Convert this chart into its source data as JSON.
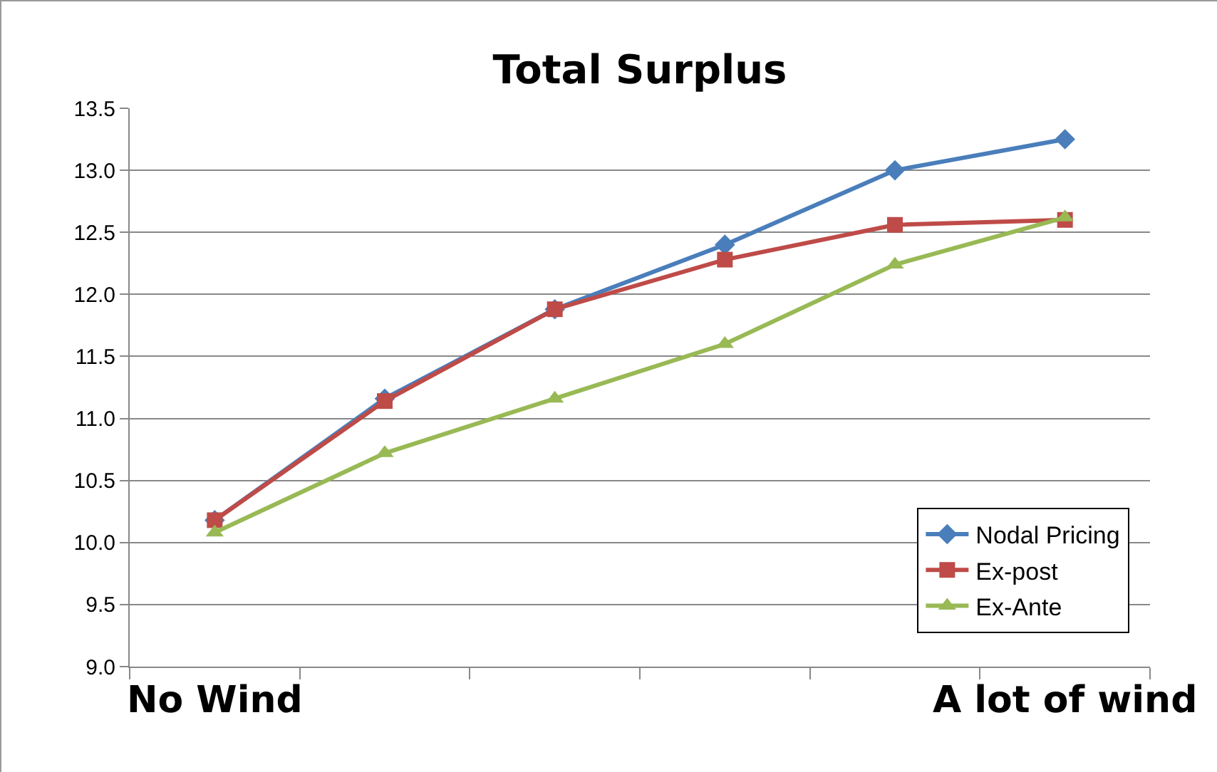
{
  "chart_data": {
    "type": "line",
    "title": "Total Surplus",
    "categories": [
      "No Wind",
      null,
      null,
      null,
      null,
      "A lot of wind"
    ],
    "series": [
      {
        "name": "Nodal Pricing",
        "color": "#4a7ebb",
        "marker": "diamond",
        "values": [
          10.18,
          11.16,
          11.88,
          12.4,
          13.0,
          13.25
        ]
      },
      {
        "name": "Ex-post",
        "color": "#be4b48",
        "marker": "square",
        "values": [
          10.18,
          11.14,
          11.88,
          12.28,
          12.56,
          12.6
        ]
      },
      {
        "name": "Ex-Ante",
        "color": "#98b954",
        "marker": "triangle",
        "values": [
          10.08,
          10.72,
          11.16,
          11.6,
          12.24,
          12.62
        ]
      }
    ],
    "ylim": [
      9.0,
      13.5
    ],
    "yticks": [
      {
        "value": 9,
        "label": "9.0"
      },
      {
        "value": 9.5,
        "label": "9.5"
      },
      {
        "value": 10,
        "label": "10.0"
      },
      {
        "value": 10.5,
        "label": "10.5"
      },
      {
        "value": 11,
        "label": "11.0"
      },
      {
        "value": 11.5,
        "label": "11.5"
      },
      {
        "value": 12,
        "label": "12.0"
      },
      {
        "value": 12.5,
        "label": "12.5"
      },
      {
        "value": 13,
        "label": "13.0"
      },
      {
        "value": 13.5,
        "label": "13.5"
      }
    ],
    "grid": "y",
    "legend": "bottom right"
  }
}
